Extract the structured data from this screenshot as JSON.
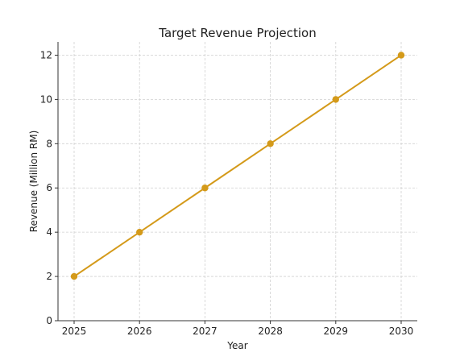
{
  "chart_data": {
    "type": "line",
    "title": "Target Revenue Projection",
    "xlabel": "Year",
    "ylabel": "Revenue (Million RM)",
    "x": [
      "2025",
      "2026",
      "2027",
      "2028",
      "2029",
      "2030"
    ],
    "series": [
      {
        "values": [
          2,
          4,
          6,
          8,
          10,
          12
        ],
        "color": "#d49a1a",
        "marker": "circle"
      }
    ],
    "yticks": [
      0,
      2,
      4,
      6,
      8,
      10,
      12
    ],
    "ylim": [
      0,
      12.6
    ],
    "grid": true,
    "legend": "none"
  }
}
